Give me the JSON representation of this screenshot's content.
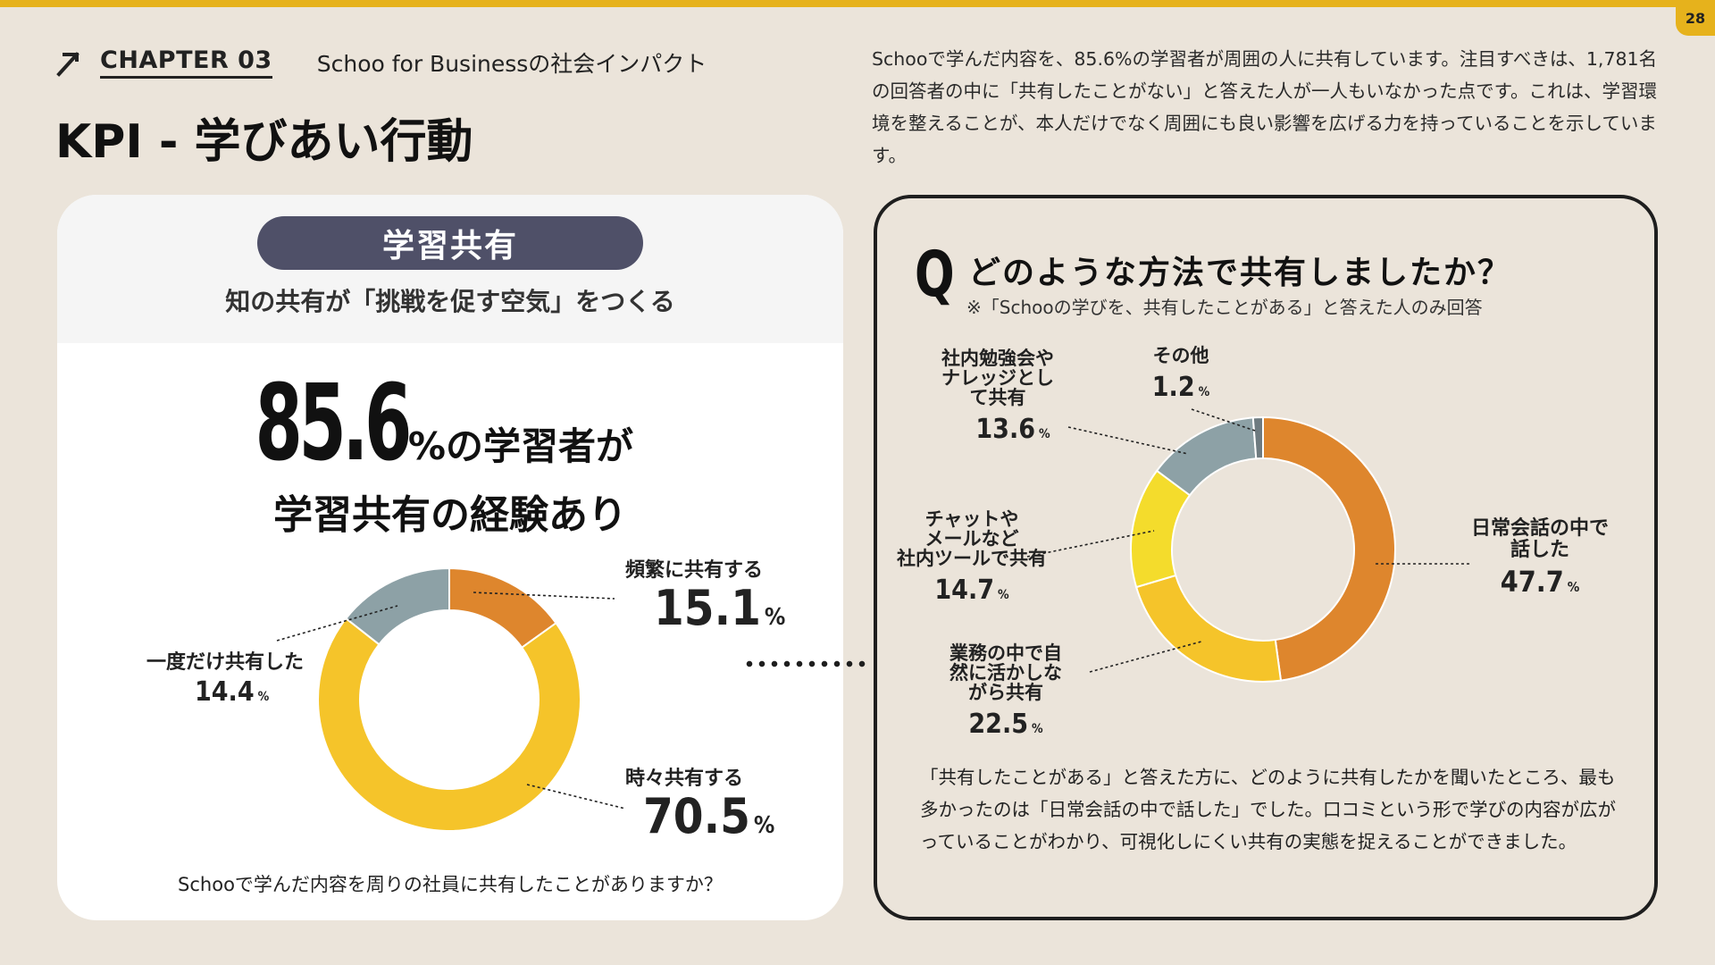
{
  "page_number": "28",
  "chapter": {
    "label": "CHAPTER 03",
    "subtitle": "Schoo for Businessの社会インパクト"
  },
  "title": "KPI - 学びあい行動",
  "intro": "Schooで学んだ内容を、85.6%の学習者が周囲の人に共有しています。注目すべきは、1,781名の回答者の中に「共有したことがない」と答えた人が一人もいなかった点です。これは、学習環境を整えることが、本人だけでなく周囲にも良い影響を広げる力を持っていることを示しています。",
  "left": {
    "pill": "学習共有",
    "subtitle": "知の共有が「挑戦を促す空気」をつくる",
    "headline_number": "85.6",
    "headline_suffix": "%の学習者が",
    "headline_line2": "学習共有の経験あり",
    "question": "Schooで学んだ内容を周りの社員に共有したことがありますか？"
  },
  "right": {
    "q_mark": "Q",
    "question": "どのような方法で共有しましたか？",
    "note": "※「Schooの学びを、共有したことがある」と答えた人のみ回答",
    "description": "「共有したことがある」と答えた方に、どのように共有したかを聞いたところ、最も多かったのは「日常会話の中で話した」でした。口コミという形で学びの内容が広がっていることがわかり、可視化しにくい共有の実態を捉えることができました。"
  },
  "chart_data": [
    {
      "type": "pie",
      "style": "donut",
      "title": "",
      "unit": "%",
      "labels": [
        "頻繁に共有する",
        "時々共有する",
        "一度だけ共有した"
      ],
      "values": [
        15.1,
        70.5,
        14.4
      ],
      "colors": [
        "#de862d",
        "#f5c42a",
        "#8da1a6"
      ]
    },
    {
      "type": "pie",
      "style": "donut",
      "title": "",
      "unit": "%",
      "labels": [
        "日常会話の中で話した",
        "業務の中で自然に活かしながら共有",
        "チャットやメールなど社内ツールで共有",
        "社内勉強会やナレッジとして共有",
        "その他"
      ],
      "values": [
        47.7,
        22.5,
        14.7,
        13.6,
        1.2
      ],
      "colors": [
        "#de862d",
        "#f5c42a",
        "#f4dc2c",
        "#8da1a6",
        "#6e7b80"
      ]
    }
  ]
}
